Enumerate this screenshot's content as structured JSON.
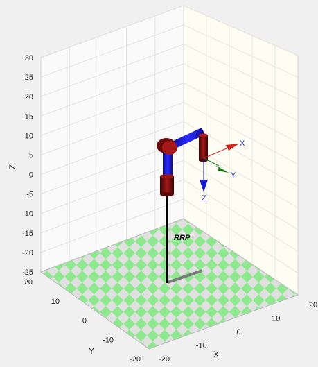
{
  "plot": {
    "robot_name": "RRP",
    "axis_labels": {
      "x": "X",
      "y": "Y",
      "z": "Z"
    },
    "z_ticks": [
      "30",
      "25",
      "20",
      "15",
      "10",
      "5",
      "0",
      "-5",
      "-10",
      "-15",
      "-20",
      "-25"
    ],
    "x_ticks": [
      "-20",
      "-10",
      "0",
      "10",
      "20"
    ],
    "y_ticks": [
      "20",
      "10",
      "0",
      "-10",
      "-20"
    ],
    "frame_labels": {
      "x": "X",
      "y": "Y",
      "z": "Z"
    },
    "colors": {
      "figure_bg": "#f0f0f0",
      "axes_bg": "#fdfdf8",
      "grid": "#dcdcdc",
      "floor_a": "#8ee88e",
      "floor_b": "#e0e0e0",
      "link": "#1a1aff",
      "joint": "#7a0e0e",
      "frame_x": "#d02020",
      "frame_y": "#0a7a0a",
      "frame_z": "#1a1acc",
      "base_rod": "#000000",
      "shadow": "#7a7a7a"
    },
    "icons": [
      "robot-arm-model",
      "coordinate-frame-triad",
      "checkerboard-floor"
    ]
  }
}
